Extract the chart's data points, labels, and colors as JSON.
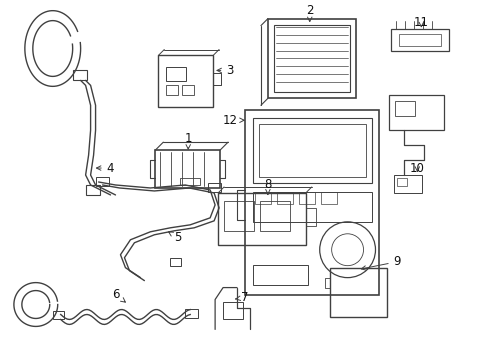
{
  "bg_color": "#ffffff",
  "line_color": "#404040",
  "label_color": "#111111",
  "figsize": [
    4.89,
    3.6
  ],
  "dpi": 100
}
